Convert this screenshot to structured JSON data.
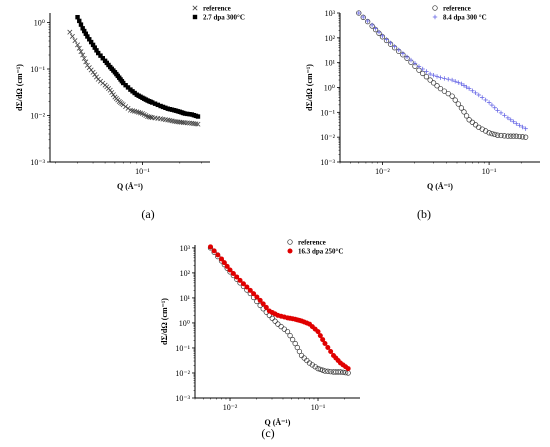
{
  "chart_data": [
    {
      "type": "scatter",
      "caption": "(a)",
      "xlabel": "Q (Å⁻¹)",
      "ylabel": "dΣ/dΩ (cm⁻¹)",
      "x_scale": "log",
      "y_scale": "log",
      "xlim": [
        0.018,
        0.35
      ],
      "ylim": [
        0.001,
        1.6
      ],
      "x_ticks": [
        {
          "value": 0.1,
          "label": "10⁻¹"
        }
      ],
      "y_ticks": [
        {
          "value": 0.001,
          "label": "10⁻³"
        },
        {
          "value": 0.01,
          "label": "10⁻²"
        },
        {
          "value": 0.1,
          "label": "10⁻¹"
        },
        {
          "value": 1,
          "label": "10⁰"
        }
      ],
      "legend_position": "top-right",
      "series": [
        {
          "name": "reference",
          "marker": "x",
          "color": "#444444",
          "x": [
            0.026,
            0.03,
            0.033,
            0.036,
            0.04,
            0.044,
            0.05,
            0.055,
            0.06,
            0.065,
            0.07,
            0.08,
            0.09,
            0.1,
            0.11,
            0.12,
            0.14,
            0.16,
            0.18,
            0.2,
            0.22,
            0.25,
            0.28
          ],
          "y": [
            0.62,
            0.33,
            0.2,
            0.12,
            0.085,
            0.06,
            0.045,
            0.035,
            0.025,
            0.02,
            0.017,
            0.013,
            0.012,
            0.011,
            0.0095,
            0.009,
            0.0085,
            0.008,
            0.0075,
            0.0072,
            0.007,
            0.0068,
            0.0065
          ]
        },
        {
          "name": "2.7 dpa 300°C",
          "marker": "square",
          "color": "#000000",
          "x": [
            0.03,
            0.033,
            0.036,
            0.04,
            0.044,
            0.05,
            0.055,
            0.06,
            0.065,
            0.07,
            0.08,
            0.09,
            0.1,
            0.11,
            0.12,
            0.14,
            0.16,
            0.18,
            0.2,
            0.22,
            0.25,
            0.28
          ],
          "y": [
            1.3,
            0.75,
            0.5,
            0.33,
            0.22,
            0.15,
            0.11,
            0.085,
            0.065,
            0.05,
            0.036,
            0.028,
            0.024,
            0.021,
            0.019,
            0.016,
            0.014,
            0.013,
            0.012,
            0.011,
            0.0105,
            0.0095
          ]
        }
      ]
    },
    {
      "type": "scatter",
      "caption": "(b)",
      "xlabel": "Q (Å⁻¹)",
      "ylabel": "dΣ/dΩ (cm⁻¹)",
      "x_scale": "log",
      "y_scale": "log",
      "xlim": [
        0.004,
        0.3
      ],
      "ylim": [
        0.001,
        1000
      ],
      "x_ticks": [
        {
          "value": 0.01,
          "label": "10⁻²"
        },
        {
          "value": 0.1,
          "label": "10⁻¹"
        }
      ],
      "y_ticks": [
        {
          "value": 0.001,
          "label": "10⁻³"
        },
        {
          "value": 0.01,
          "label": "10⁻²"
        },
        {
          "value": 0.1,
          "label": "10⁻¹"
        },
        {
          "value": 1,
          "label": "10⁰"
        },
        {
          "value": 10,
          "label": "10¹"
        },
        {
          "value": 100,
          "label": "10²"
        },
        {
          "value": 1000,
          "label": "10³"
        }
      ],
      "legend_position": "top-right",
      "series": [
        {
          "name": "reference",
          "marker": "open-circle",
          "color": "#333333",
          "x": [
            0.006,
            0.008,
            0.01,
            0.013,
            0.017,
            0.022,
            0.028,
            0.035,
            0.045,
            0.055,
            0.065,
            0.08,
            0.1,
            0.12,
            0.15,
            0.18,
            0.22
          ],
          "y": [
            1000,
            300,
            110,
            40,
            15,
            5,
            2,
            0.9,
            0.45,
            0.15,
            0.05,
            0.025,
            0.015,
            0.012,
            0.011,
            0.011,
            0.01
          ]
        },
        {
          "name": "8.4 dpa 300 °C",
          "marker": "plus",
          "color": "#6a6ae6",
          "x": [
            0.006,
            0.008,
            0.01,
            0.013,
            0.017,
            0.022,
            0.028,
            0.035,
            0.045,
            0.055,
            0.065,
            0.08,
            0.1,
            0.12,
            0.15,
            0.18,
            0.22
          ],
          "y": [
            1000,
            330,
            120,
            45,
            17,
            7,
            3.5,
            2.5,
            2,
            1.4,
            0.9,
            0.5,
            0.25,
            0.12,
            0.06,
            0.035,
            0.022
          ]
        }
      ]
    },
    {
      "type": "scatter",
      "caption": "(c)",
      "xlabel": "Q (Å⁻¹)",
      "ylabel": "dΣ/dΩ (cm⁻¹)",
      "x_scale": "log",
      "y_scale": "log",
      "xlim": [
        0.004,
        0.3
      ],
      "ylim": [
        0.001,
        1300
      ],
      "x_ticks": [
        {
          "value": 0.01,
          "label": "10⁻²"
        },
        {
          "value": 0.1,
          "label": "10⁻¹"
        }
      ],
      "y_ticks": [
        {
          "value": 0.001,
          "label": "10⁻³"
        },
        {
          "value": 0.01,
          "label": "10⁻²"
        },
        {
          "value": 0.1,
          "label": "10⁻¹"
        },
        {
          "value": 1,
          "label": "10⁰"
        },
        {
          "value": 10,
          "label": "10¹"
        },
        {
          "value": 100,
          "label": "10²"
        },
        {
          "value": 1000,
          "label": "10³"
        }
      ],
      "legend_position": "top-right",
      "series": [
        {
          "name": "reference",
          "marker": "open-circle",
          "color": "#333333",
          "x": [
            0.006,
            0.008,
            0.01,
            0.013,
            0.017,
            0.022,
            0.028,
            0.035,
            0.045,
            0.055,
            0.065,
            0.08,
            0.1,
            0.12,
            0.15,
            0.18,
            0.22
          ],
          "y": [
            1000,
            300,
            110,
            40,
            15,
            5,
            2,
            0.9,
            0.45,
            0.15,
            0.05,
            0.025,
            0.015,
            0.012,
            0.011,
            0.011,
            0.01
          ]
        },
        {
          "name": "16.3 dpa 250°C",
          "marker": "filled-circle",
          "color": "#e00000",
          "x": [
            0.006,
            0.008,
            0.01,
            0.013,
            0.017,
            0.022,
            0.028,
            0.035,
            0.045,
            0.055,
            0.065,
            0.08,
            0.1,
            0.12,
            0.15,
            0.18,
            0.22
          ],
          "y": [
            1100,
            360,
            130,
            50,
            20,
            8,
            3,
            2,
            1.6,
            1.4,
            1.2,
            0.9,
            0.45,
            0.15,
            0.05,
            0.025,
            0.015
          ]
        }
      ]
    }
  ]
}
